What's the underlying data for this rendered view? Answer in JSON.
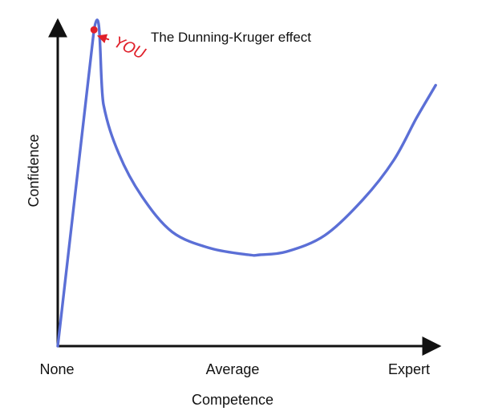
{
  "chart_data": {
    "type": "line",
    "title": "The Dunning-Kruger effect",
    "xlabel": "Competence",
    "ylabel": "Confidence",
    "xticks": [
      "None",
      "Average",
      "Expert"
    ],
    "xlim": [
      0,
      1
    ],
    "ylim": [
      0,
      1
    ],
    "grid": false,
    "series": [
      {
        "x": [
          0.0,
          0.095,
          0.12,
          0.16,
          0.22,
          0.3,
          0.4,
          0.5,
          0.53,
          0.6,
          0.7,
          0.8,
          0.88,
          0.94,
          0.99
        ],
        "y": [
          0.0,
          0.97,
          0.74,
          0.59,
          0.46,
          0.35,
          0.3,
          0.28,
          0.28,
          0.29,
          0.34,
          0.45,
          0.57,
          0.7,
          0.8
        ],
        "color": "#5b6fd6"
      }
    ],
    "annotations": [
      {
        "text": "YOU",
        "x": 0.095,
        "y": 0.97,
        "color": "#e0202a"
      }
    ],
    "colors": {
      "axis": "#111111",
      "series": "#5b6fd6",
      "annotation": "#e0202a"
    }
  }
}
